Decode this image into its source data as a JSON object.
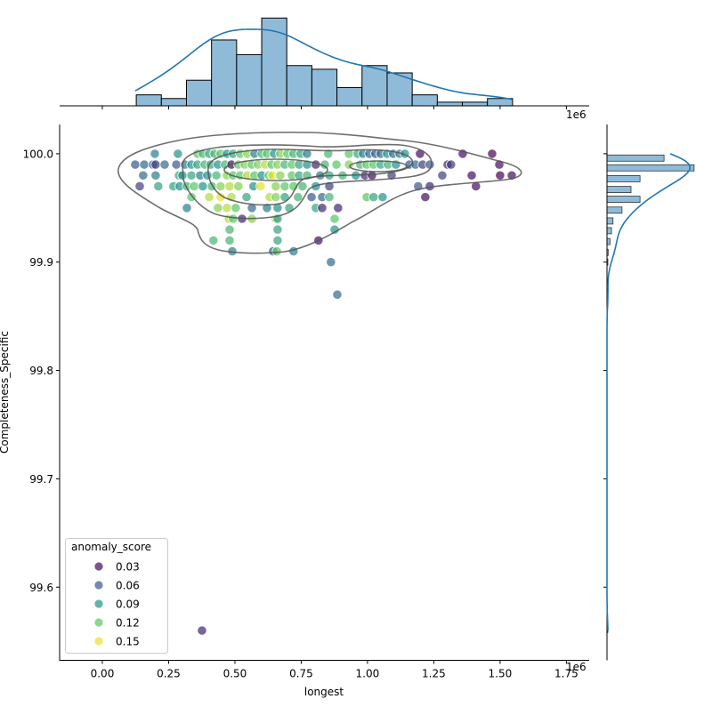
{
  "chart_data": {
    "type": "scatter",
    "subtype": "jointplot",
    "xlabel": "longest",
    "ylabel": "Completeness_Specific",
    "x_offset_text": "1e6",
    "xlim": [
      -0.161,
      1.836
    ],
    "ylim": [
      99.5325,
      100.027
    ],
    "x_ticks": [
      "0.00",
      "0.25",
      "0.50",
      "0.75",
      "1.00",
      "1.25",
      "1.50",
      "1.75"
    ],
    "x_tick_values": [
      0,
      0.25,
      0.5,
      0.75,
      1.0,
      1.25,
      1.5,
      1.75
    ],
    "y_ticks": [
      "99.6",
      "99.7",
      "99.8",
      "99.9",
      "100.0"
    ],
    "y_tick_values": [
      99.6,
      99.7,
      99.8,
      99.9,
      100.0
    ],
    "grid": false,
    "legend": {
      "title": "anomaly_score",
      "placement": "lower-left",
      "entries": [
        {
          "label": "0.03",
          "value": 0.03
        },
        {
          "label": "0.06",
          "value": 0.06
        },
        {
          "label": "0.09",
          "value": 0.09
        },
        {
          "label": "0.12",
          "value": 0.12
        },
        {
          "label": "0.15",
          "value": 0.15
        }
      ]
    },
    "colormap": "viridis",
    "hue_range": [
      0.025,
      0.155
    ],
    "kde_contour_color": "#555555",
    "hist_color": "#1f77b4",
    "points_note_columns": [
      "longest_1e6",
      "Completeness_Specific",
      "anomaly_score"
    ],
    "points": [
      [
        0.198,
        100.0,
        0.08
      ],
      [
        0.285,
        100.0,
        0.09
      ],
      [
        0.359,
        100.0,
        0.12
      ],
      [
        0.379,
        100.0,
        0.11
      ],
      [
        0.403,
        100.0,
        0.1
      ],
      [
        0.423,
        100.0,
        0.11
      ],
      [
        0.446,
        100.0,
        0.12
      ],
      [
        0.47,
        100.0,
        0.09
      ],
      [
        0.493,
        100.0,
        0.1
      ],
      [
        0.52,
        100.0,
        0.12
      ],
      [
        0.547,
        100.0,
        0.13
      ],
      [
        0.574,
        100.0,
        0.08
      ],
      [
        0.601,
        100.0,
        0.11
      ],
      [
        0.621,
        100.0,
        0.12
      ],
      [
        0.648,
        100.0,
        0.09
      ],
      [
        0.671,
        100.0,
        0.13
      ],
      [
        0.698,
        100.0,
        0.12
      ],
      [
        0.721,
        100.0,
        0.11
      ],
      [
        0.748,
        100.0,
        0.1
      ],
      [
        0.772,
        100.0,
        0.08
      ],
      [
        0.852,
        100.0,
        0.11
      ],
      [
        0.93,
        100.0,
        0.12
      ],
      [
        0.963,
        100.0,
        0.1
      ],
      [
        0.983,
        100.0,
        0.08
      ],
      [
        1.007,
        100.0,
        0.07
      ],
      [
        1.03,
        100.0,
        0.06
      ],
      [
        1.05,
        100.0,
        0.07
      ],
      [
        1.074,
        100.0,
        0.09
      ],
      [
        1.097,
        100.0,
        0.07
      ],
      [
        1.121,
        100.0,
        0.08
      ],
      [
        1.141,
        100.0,
        0.09
      ],
      [
        1.198,
        100.0,
        0.03
      ],
      [
        1.359,
        100.0,
        0.03
      ],
      [
        1.47,
        100.0,
        0.02
      ],
      [
        0.124,
        99.99,
        0.06
      ],
      [
        0.158,
        99.99,
        0.07
      ],
      [
        0.191,
        99.99,
        0.06
      ],
      [
        0.201,
        99.99,
        0.05
      ],
      [
        0.235,
        99.99,
        0.07
      ],
      [
        0.279,
        99.99,
        0.06
      ],
      [
        0.312,
        99.99,
        0.08
      ],
      [
        0.336,
        99.99,
        0.09
      ],
      [
        0.359,
        99.99,
        0.1
      ],
      [
        0.386,
        99.99,
        0.11
      ],
      [
        0.409,
        99.99,
        0.1
      ],
      [
        0.436,
        99.99,
        0.09
      ],
      [
        0.463,
        99.99,
        0.11
      ],
      [
        0.487,
        99.99,
        0.03
      ],
      [
        0.513,
        99.99,
        0.12
      ],
      [
        0.537,
        99.99,
        0.13
      ],
      [
        0.564,
        99.99,
        0.12
      ],
      [
        0.587,
        99.99,
        0.13
      ],
      [
        0.614,
        99.99,
        0.14
      ],
      [
        0.638,
        99.99,
        0.12
      ],
      [
        0.661,
        99.99,
        0.13
      ],
      [
        0.688,
        99.99,
        0.11
      ],
      [
        0.715,
        99.99,
        0.12
      ],
      [
        0.742,
        99.99,
        0.1
      ],
      [
        0.772,
        99.99,
        0.09
      ],
      [
        0.805,
        99.99,
        0.04
      ],
      [
        0.839,
        99.99,
        0.11
      ],
      [
        0.883,
        99.99,
        0.12
      ],
      [
        0.93,
        99.99,
        0.13
      ],
      [
        0.973,
        99.99,
        0.11
      ],
      [
        0.997,
        99.99,
        0.12
      ],
      [
        1.023,
        99.99,
        0.12
      ],
      [
        1.05,
        99.99,
        0.1
      ],
      [
        1.077,
        99.99,
        0.11
      ],
      [
        1.107,
        99.99,
        0.09
      ],
      [
        1.158,
        99.99,
        0.06
      ],
      [
        1.181,
        99.99,
        0.07
      ],
      [
        1.208,
        99.99,
        0.05
      ],
      [
        1.235,
        99.99,
        0.06
      ],
      [
        1.302,
        99.99,
        0.04
      ],
      [
        1.315,
        99.99,
        0.05
      ],
      [
        1.497,
        99.99,
        0.03
      ],
      [
        0.154,
        99.98,
        0.07
      ],
      [
        0.201,
        99.98,
        0.08
      ],
      [
        0.289,
        99.98,
        0.1
      ],
      [
        0.302,
        99.98,
        0.09
      ],
      [
        0.336,
        99.98,
        0.1
      ],
      [
        0.369,
        99.98,
        0.08
      ],
      [
        0.396,
        99.98,
        0.09
      ],
      [
        0.43,
        99.98,
        0.11
      ],
      [
        0.47,
        99.98,
        0.13
      ],
      [
        0.493,
        99.98,
        0.12
      ],
      [
        0.52,
        99.98,
        0.12
      ],
      [
        0.547,
        99.98,
        0.14
      ],
      [
        0.574,
        99.98,
        0.12
      ],
      [
        0.601,
        99.98,
        0.09
      ],
      [
        0.628,
        99.98,
        0.12
      ],
      [
        0.641,
        99.98,
        0.15
      ],
      [
        0.671,
        99.98,
        0.13
      ],
      [
        0.715,
        99.98,
        0.12
      ],
      [
        0.742,
        99.98,
        0.1
      ],
      [
        0.772,
        99.98,
        0.11
      ],
      [
        0.822,
        99.98,
        0.08
      ],
      [
        0.856,
        99.98,
        0.1
      ],
      [
        0.906,
        99.98,
        0.11
      ],
      [
        0.956,
        99.98,
        0.09
      ],
      [
        0.99,
        99.98,
        0.04
      ],
      [
        1.017,
        99.98,
        0.03
      ],
      [
        1.091,
        99.98,
        0.05
      ],
      [
        1.282,
        99.98,
        0.05
      ],
      [
        1.393,
        99.98,
        0.03
      ],
      [
        1.5,
        99.98,
        0.02
      ],
      [
        1.544,
        99.98,
        0.03
      ],
      [
        0.141,
        99.97,
        0.05
      ],
      [
        0.211,
        99.97,
        0.1
      ],
      [
        0.268,
        99.97,
        0.1
      ],
      [
        0.292,
        99.97,
        0.09
      ],
      [
        0.319,
        99.97,
        0.11
      ],
      [
        0.346,
        99.97,
        0.12
      ],
      [
        0.379,
        99.97,
        0.09
      ],
      [
        0.413,
        99.97,
        0.11
      ],
      [
        0.446,
        99.97,
        0.13
      ],
      [
        0.48,
        99.97,
        0.14
      ],
      [
        0.513,
        99.97,
        0.13
      ],
      [
        0.57,
        99.97,
        0.09
      ],
      [
        0.597,
        99.97,
        0.15
      ],
      [
        0.654,
        99.97,
        0.13
      ],
      [
        0.688,
        99.97,
        0.12
      ],
      [
        0.721,
        99.97,
        0.12
      ],
      [
        0.755,
        99.97,
        0.11
      ],
      [
        0.805,
        99.97,
        0.09
      ],
      [
        0.856,
        99.97,
        0.05
      ],
      [
        1.191,
        99.97,
        0.06
      ],
      [
        1.235,
        99.97,
        0.04
      ],
      [
        1.409,
        99.97,
        0.03
      ],
      [
        0.336,
        99.96,
        0.12
      ],
      [
        0.403,
        99.96,
        0.14
      ],
      [
        0.446,
        99.96,
        0.15
      ],
      [
        0.487,
        99.96,
        0.14
      ],
      [
        0.544,
        99.96,
        0.1
      ],
      [
        0.631,
        99.96,
        0.14
      ],
      [
        0.654,
        99.96,
        0.13
      ],
      [
        0.688,
        99.96,
        0.1
      ],
      [
        0.738,
        99.96,
        0.11
      ],
      [
        0.789,
        99.96,
        0.06
      ],
      [
        0.829,
        99.96,
        0.07
      ],
      [
        0.856,
        99.96,
        0.11
      ],
      [
        0.997,
        99.96,
        0.12
      ],
      [
        1.023,
        99.96,
        0.1
      ],
      [
        1.057,
        99.96,
        0.09
      ],
      [
        1.218,
        99.96,
        0.03
      ],
      [
        0.319,
        99.95,
        0.08
      ],
      [
        0.436,
        99.95,
        0.13
      ],
      [
        0.47,
        99.95,
        0.14
      ],
      [
        0.503,
        99.95,
        0.12
      ],
      [
        0.564,
        99.95,
        0.07
      ],
      [
        0.621,
        99.95,
        0.08
      ],
      [
        0.661,
        99.95,
        0.09
      ],
      [
        0.705,
        99.95,
        0.1
      ],
      [
        0.805,
        99.95,
        0.1
      ],
      [
        0.829,
        99.95,
        0.04
      ],
      [
        0.889,
        99.95,
        0.04
      ],
      [
        0.477,
        99.94,
        0.14
      ],
      [
        0.493,
        99.94,
        0.12
      ],
      [
        0.527,
        99.94,
        0.04
      ],
      [
        0.564,
        99.94,
        0.13
      ],
      [
        0.654,
        99.94,
        0.13
      ],
      [
        0.661,
        99.94,
        0.1
      ],
      [
        0.876,
        99.94,
        0.12
      ],
      [
        0.48,
        99.93,
        0.11
      ],
      [
        0.661,
        99.93,
        0.1
      ],
      [
        0.876,
        99.93,
        0.09
      ],
      [
        0.419,
        99.92,
        0.11
      ],
      [
        0.48,
        99.92,
        0.11
      ],
      [
        0.661,
        99.92,
        0.1
      ],
      [
        0.815,
        99.92,
        0.03
      ],
      [
        0.49,
        99.91,
        0.08
      ],
      [
        0.644,
        99.91,
        0.06
      ],
      [
        0.658,
        99.91,
        0.12
      ],
      [
        0.721,
        99.91,
        0.08
      ],
      [
        0.862,
        99.9,
        0.07
      ],
      [
        0.886,
        99.87,
        0.07
      ],
      [
        0.376,
        99.56,
        0.04
      ]
    ],
    "x_marginal_hist": {
      "bin_start": 0.128,
      "bin_width": 0.0946,
      "counts": [
        3,
        2,
        7,
        18,
        14,
        24,
        11,
        10,
        5,
        11,
        9,
        3,
        1,
        1,
        2
      ],
      "count_max": 26.5
    },
    "y_marginal_hist": {
      "bin_centers": [
        99.996,
        99.987,
        99.977,
        99.967,
        99.958,
        99.948,
        99.938,
        99.929,
        99.919,
        99.909,
        99.9,
        99.871,
        99.561
      ],
      "counts": [
        19,
        29,
        11,
        8,
        11,
        5,
        2,
        1.5,
        1,
        0.4,
        0.3,
        0.3,
        0.3
      ],
      "count_max": 32
    }
  }
}
